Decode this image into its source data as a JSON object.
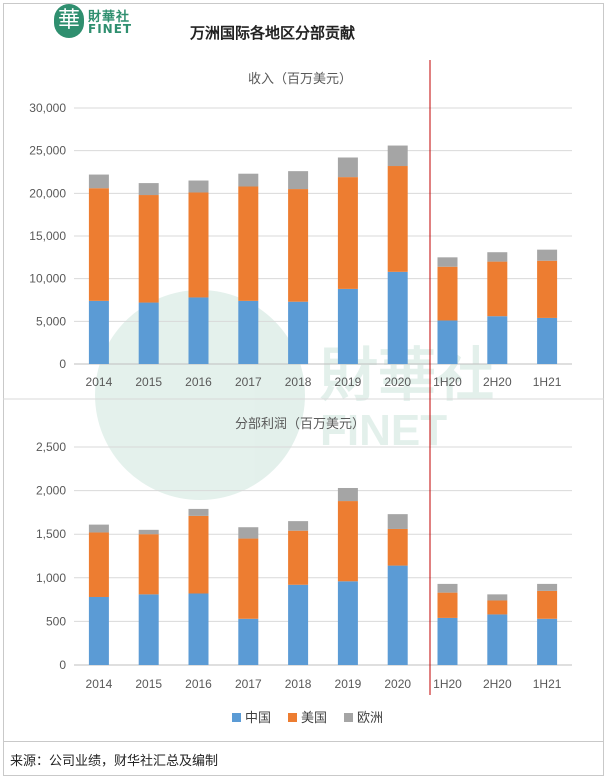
{
  "header": {
    "logo_mark": "華",
    "logo_cn": "財華社",
    "logo_en": "FINET",
    "title": "万洲国际各地区分部贡献"
  },
  "watermark": {
    "text_cn": "財華社",
    "text_en": "FINET"
  },
  "footer": {
    "source": "来源：公司业绩，财华社汇总及编制"
  },
  "colors": {
    "china": "#5b9bd5",
    "usa": "#ed7d31",
    "europe": "#a5a5a5",
    "divider": "#c00000",
    "gridline": "#d9d9d9"
  },
  "chart_data": [
    {
      "type": "bar",
      "stacked": true,
      "title": "收入（百万美元）",
      "categories": [
        "2014",
        "2015",
        "2016",
        "2017",
        "2018",
        "2019",
        "2020",
        "1H20",
        "2H20",
        "1H21"
      ],
      "series": [
        {
          "name": "中国",
          "values": [
            7400,
            7200,
            7800,
            7400,
            7300,
            8800,
            10800,
            5100,
            5600,
            5400
          ]
        },
        {
          "name": "美国",
          "values": [
            13200,
            12600,
            12300,
            13400,
            13200,
            13100,
            12400,
            6300,
            6400,
            6700
          ]
        },
        {
          "name": "欧洲",
          "values": [
            1600,
            1400,
            1400,
            1500,
            2100,
            2300,
            2400,
            1100,
            1100,
            1300
          ]
        }
      ],
      "ylim": [
        0,
        30000
      ],
      "yticks": [
        "0",
        "5,000",
        "10,000",
        "15,000",
        "20,000",
        "25,000",
        "30,000"
      ],
      "ytick_values": [
        0,
        5000,
        10000,
        15000,
        20000,
        25000,
        30000
      ],
      "grid": true
    },
    {
      "type": "bar",
      "stacked": true,
      "title": "分部利润（百万美元）",
      "categories": [
        "2014",
        "2015",
        "2016",
        "2017",
        "2018",
        "2019",
        "2020",
        "1H20",
        "2H20",
        "1H21"
      ],
      "series": [
        {
          "name": "中国",
          "values": [
            780,
            810,
            820,
            530,
            920,
            960,
            1140,
            540,
            580,
            530
          ]
        },
        {
          "name": "美国",
          "values": [
            740,
            690,
            890,
            920,
            620,
            920,
            420,
            290,
            160,
            320
          ]
        },
        {
          "name": "欧洲",
          "values": [
            90,
            50,
            80,
            130,
            110,
            150,
            170,
            100,
            70,
            80
          ]
        }
      ],
      "ylim": [
        0,
        2500
      ],
      "yticks": [
        "0",
        "500",
        "1,000",
        "1,500",
        "2,000",
        "2,500"
      ],
      "ytick_values": [
        0,
        500,
        1000,
        1500,
        2000,
        2500
      ],
      "grid": true
    }
  ],
  "legend": {
    "placement": "bottom",
    "items": [
      "中国",
      "美国",
      "欧洲"
    ]
  }
}
